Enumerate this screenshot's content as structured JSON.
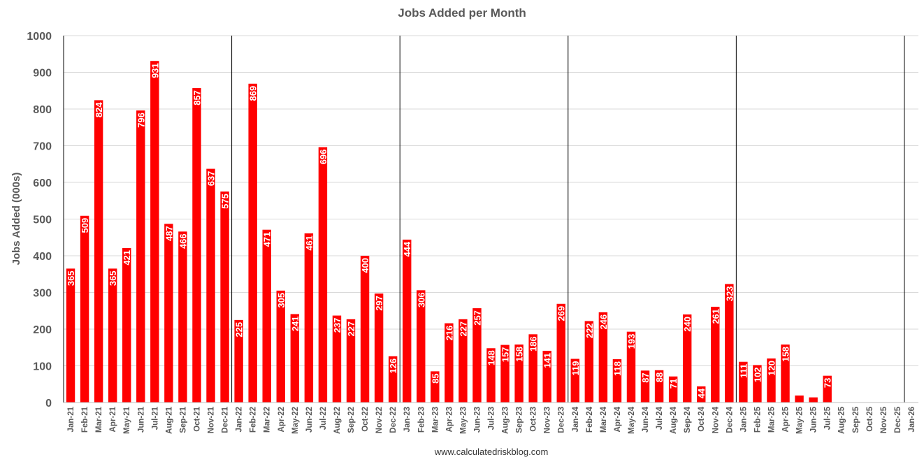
{
  "chart_data": {
    "type": "bar",
    "title": "Jobs Added per Month",
    "ylabel": "Jobs Added (000s)",
    "xlabel": "",
    "source": "www.calculatedriskblog.com",
    "ylim": [
      0,
      1000
    ],
    "yticks": [
      0,
      100,
      200,
      300,
      400,
      500,
      600,
      700,
      800,
      900,
      1000
    ],
    "grid": true,
    "bar_color": "#ff0000",
    "categories": [
      "Jan-21",
      "Feb-21",
      "Mar-21",
      "Apr-21",
      "May-21",
      "Jun-21",
      "Jul-21",
      "Aug-21",
      "Sep-21",
      "Oct-21",
      "Nov-21",
      "Dec-21",
      "Jan-22",
      "Feb-22",
      "Mar-22",
      "Apr-22",
      "May-22",
      "Jun-22",
      "Jul-22",
      "Aug-22",
      "Sep-22",
      "Oct-22",
      "Nov-22",
      "Dec-22",
      "Jan-23",
      "Feb-23",
      "Mar-23",
      "Apr-23",
      "May-23",
      "Jun-23",
      "Jul-23",
      "Aug-23",
      "Sep-23",
      "Oct-23",
      "Nov-23",
      "Dec-23",
      "Jan-24",
      "Feb-24",
      "Mar-24",
      "Apr-24",
      "May-24",
      "Jun-24",
      "Jul-24",
      "Aug-24",
      "Sep-24",
      "Oct-24",
      "Nov-24",
      "Dec-24",
      "Jan-25",
      "Feb-25",
      "Mar-25",
      "Apr-25",
      "May-25",
      "Jun-25",
      "Jul-25",
      "Aug-25",
      "Sep-25",
      "Oct-25",
      "Nov-25",
      "Dec-25",
      "Jan-26"
    ],
    "values": [
      365,
      509,
      824,
      365,
      421,
      796,
      931,
      487,
      466,
      857,
      637,
      575,
      225,
      869,
      471,
      305,
      241,
      461,
      696,
      237,
      227,
      400,
      297,
      126,
      444,
      306,
      85,
      216,
      227,
      257,
      148,
      157,
      158,
      186,
      141,
      269,
      119,
      222,
      246,
      118,
      193,
      87,
      88,
      71,
      240,
      44,
      261,
      323,
      111,
      102,
      120,
      158,
      19,
      14,
      73,
      null,
      null,
      null,
      null,
      null,
      null
    ],
    "data_labels": [
      "365",
      "509",
      "824",
      "365",
      "421",
      "796",
      "931",
      "487",
      "466",
      "857",
      "637",
      "575",
      "225",
      "869",
      "471",
      "305",
      "241",
      "461",
      "696",
      "237",
      "227",
      "400",
      "297",
      "126",
      "444",
      "306",
      "85",
      "216",
      "227",
      "257",
      "148",
      "157",
      "158",
      "186",
      "141",
      "269",
      "119",
      "222",
      "246",
      "118",
      "193",
      "87",
      "88",
      "71",
      "240",
      "44",
      "261",
      "323",
      "111",
      "102",
      "120",
      "158",
      "",
      "",
      "73",
      "",
      "",
      "",
      "",
      "",
      ""
    ],
    "year_dividers_after": [
      "Dec-21",
      "Dec-22",
      "Dec-23",
      "Dec-24",
      "Dec-25"
    ]
  }
}
